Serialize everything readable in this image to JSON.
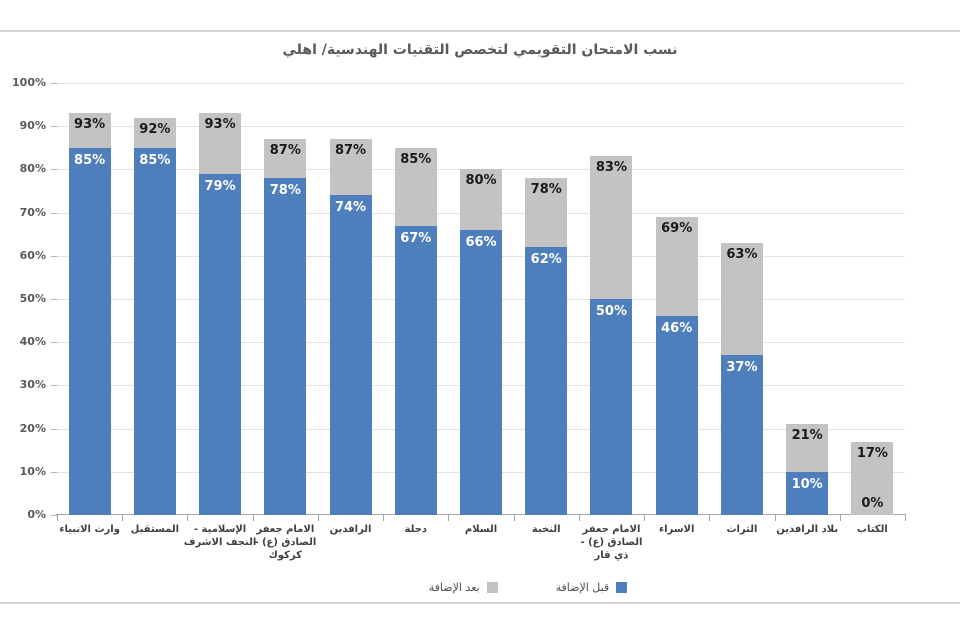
{
  "chart_data": {
    "type": "bar",
    "subtype": "stacked-column",
    "title": "نسب الامتحان التقويمي لتخصص التقنيات الهندسية/ اهلي",
    "categories": [
      "وارث الانبياء",
      "المستقبل",
      "الإسلامية - النجف الاشرف",
      "الامام جعفر الصادق (ع) - كركوك",
      "الرافدين",
      "دجلة",
      "السلام",
      "النخبة",
      "الامام جعفر الصادق (ع) - ذي قار",
      "الاسراء",
      "التراث",
      "بلاد الرافدين",
      "الكتاب"
    ],
    "series": [
      {
        "name": "قبل الإضافة",
        "values": [
          85,
          85,
          79,
          78,
          74,
          67,
          66,
          62,
          50,
          46,
          37,
          10,
          0
        ],
        "color": "#4e7ebb",
        "label_color": "#ffffff"
      },
      {
        "name": "بعد الإضافة",
        "values_are_totals": true,
        "values": [
          93,
          92,
          93,
          87,
          87,
          85,
          80,
          78,
          83,
          69,
          63,
          21,
          17
        ],
        "color": "#c3c3c3",
        "label_color": "#1a1a1a"
      }
    ],
    "data_label_format": "percent",
    "y_axis": {
      "min": 0,
      "max": 100,
      "step": 10,
      "tick_labels": [
        "0%",
        "10%",
        "20%",
        "30%",
        "40%",
        "50%",
        "60%",
        "70%",
        "80%",
        "90%",
        "100%"
      ]
    },
    "grid": true,
    "legend": {
      "position": "bottom",
      "items": [
        {
          "label": "بعد الإضافة",
          "color": "#c3c3c3"
        },
        {
          "label": "قبل الإضافة",
          "color": "#4e7ebb"
        }
      ]
    }
  }
}
